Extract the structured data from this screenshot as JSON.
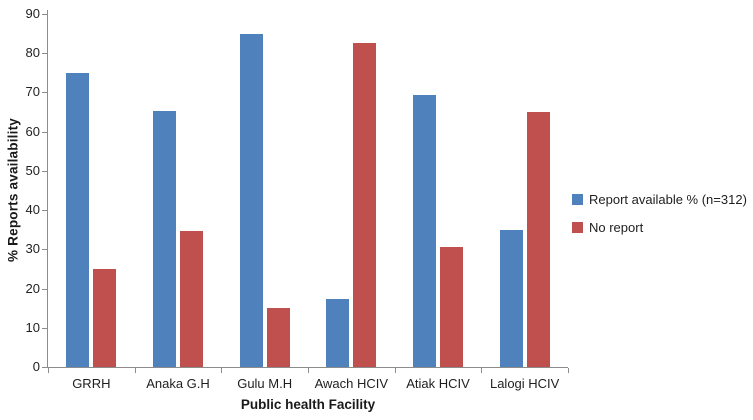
{
  "chart_data": {
    "type": "bar",
    "title": "",
    "categories": [
      "GRRH",
      "Anaka G.H",
      "Gulu M.H",
      "Awach HCIV",
      "Atiak HCIV",
      "Lalogi HCIV"
    ],
    "series": [
      {
        "name": "Report available % (n=312)",
        "color": "#4F81BD",
        "values": [
          75,
          65.3,
          85,
          17.3,
          69.3,
          35
        ]
      },
      {
        "name": "No report",
        "color": "#C0504D",
        "values": [
          25,
          34.7,
          15,
          82.7,
          30.7,
          65
        ]
      }
    ],
    "xlabel": "Public health Facility",
    "ylabel": "% Reports availability",
    "ylim": [
      0,
      90
    ],
    "yticks": [
      0,
      10,
      20,
      30,
      40,
      50,
      60,
      70,
      80,
      90
    ],
    "grid": false,
    "legend_position": "right",
    "colors": {
      "axis": "#8c8c8c",
      "text": "#1f1f1f",
      "background": "#ffffff"
    }
  }
}
